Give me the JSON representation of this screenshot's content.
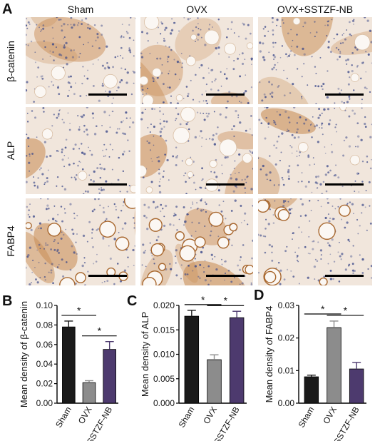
{
  "figure": {
    "panel_letters": [
      "A",
      "B",
      "C",
      "D"
    ],
    "columns": [
      "Sham",
      "OVX",
      "OVX+SSTZF-NB"
    ],
    "rows": [
      "β-catenin",
      "ALP",
      "FABP4"
    ]
  },
  "colors": {
    "sham": "#1a1a1a",
    "ovx": "#8c8c8c",
    "sstzf": "#4d3a6e",
    "tissue_light": "#f1e6dc",
    "stain_brown": "#c98d55",
    "nuclei": "#3d4a8a"
  },
  "chart_data": [
    {
      "type": "bar",
      "categories": [
        "Sham",
        "OVX",
        "SSTZF-NB"
      ],
      "values": [
        0.078,
        0.021,
        0.055
      ],
      "errors": [
        0.006,
        0.002,
        0.008
      ],
      "ylabel": "Mean density of β-catenin",
      "ylim": [
        0.0,
        0.1
      ],
      "yticks": [
        "0.00",
        "0.02",
        "0.04",
        "0.06",
        "0.08",
        "0.10"
      ],
      "significance": [
        {
          "from": "Sham",
          "to": "OVX",
          "label": "*"
        },
        {
          "from": "OVX",
          "to": "SSTZF-NB",
          "label": "*"
        }
      ]
    },
    {
      "type": "bar",
      "categories": [
        "Sham",
        "OVX",
        "SSTZF-NB"
      ],
      "values": [
        0.0178,
        0.0089,
        0.0175
      ],
      "errors": [
        0.0012,
        0.001,
        0.0013
      ],
      "ylabel": "Mean density of ALP",
      "ylim": [
        0.0,
        0.02
      ],
      "yticks": [
        "0.000",
        "0.005",
        "0.010",
        "0.015",
        "0.020"
      ],
      "significance": [
        {
          "from": "Sham",
          "to": "OVX",
          "label": "*"
        },
        {
          "from": "OVX",
          "to": "SSTZF-NB",
          "label": "*"
        }
      ]
    },
    {
      "type": "bar",
      "categories": [
        "Sham",
        "OVX",
        "SSTZF-NB"
      ],
      "values": [
        0.0081,
        0.0232,
        0.0105
      ],
      "errors": [
        0.0005,
        0.002,
        0.002
      ],
      "ylabel": "Mean density of FABP4",
      "ylim": [
        0.0,
        0.03
      ],
      "yticks": [
        "0.00",
        "0.01",
        "0.02",
        "0.03"
      ],
      "significance": [
        {
          "from": "Sham",
          "to": "OVX",
          "label": "*"
        },
        {
          "from": "OVX",
          "to": "SSTZF-NB",
          "label": "*"
        }
      ]
    }
  ]
}
